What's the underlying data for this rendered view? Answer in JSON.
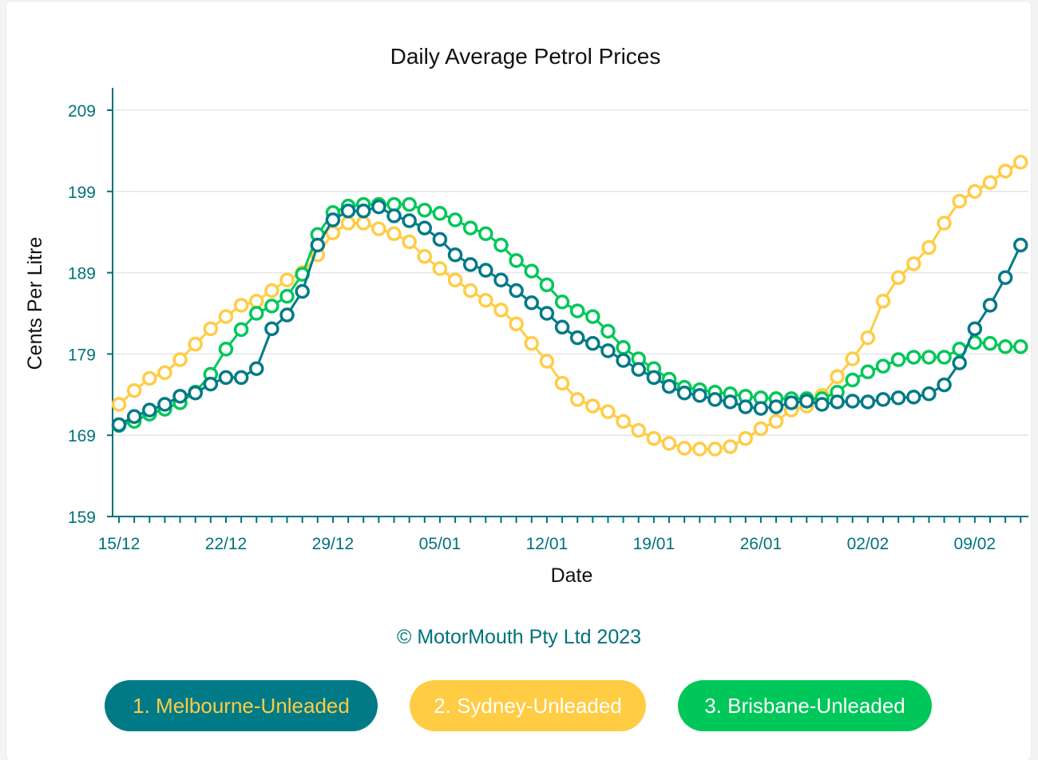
{
  "chart_data": {
    "type": "line",
    "title": "Daily Average Petrol Prices",
    "xlabel": "Date",
    "ylabel": "Cents Per Litre",
    "ylim": [
      159,
      211
    ],
    "yticks": [
      "159",
      "169",
      "179",
      "189",
      "199",
      "209"
    ],
    "xtick_labels": [
      "15/12",
      "22/12",
      "29/12",
      "05/01",
      "12/01",
      "19/01",
      "26/01",
      "02/02",
      "09/02"
    ],
    "grid": "horizontal",
    "x": [
      "15/12",
      "16/12",
      "17/12",
      "18/12",
      "19/12",
      "20/12",
      "21/12",
      "22/12",
      "23/12",
      "24/12",
      "25/12",
      "26/12",
      "27/12",
      "28/12",
      "29/12",
      "30/12",
      "31/12",
      "01/01",
      "02/01",
      "03/01",
      "04/01",
      "05/01",
      "06/01",
      "07/01",
      "08/01",
      "09/01",
      "10/01",
      "11/01",
      "12/01",
      "13/01",
      "14/01",
      "15/01",
      "16/01",
      "17/01",
      "18/01",
      "19/01",
      "20/01",
      "21/01",
      "22/01",
      "23/01",
      "24/01",
      "25/01",
      "26/01",
      "27/01",
      "28/01",
      "29/01",
      "30/01",
      "31/01",
      "01/02",
      "02/02",
      "03/02",
      "04/02",
      "05/02",
      "06/02",
      "07/02",
      "08/02",
      "09/02",
      "10/02",
      "11/02",
      "12/02"
    ],
    "series": [
      {
        "name": "1. Melbourne-Unleaded",
        "color": "#007a87",
        "text_color": "#ffcc44",
        "values": [
          170.3,
          171.3,
          172.1,
          172.8,
          173.8,
          174.2,
          175.3,
          176.1,
          176.1,
          177.2,
          182.1,
          183.8,
          186.7,
          192.4,
          195.5,
          196.6,
          196.6,
          197.1,
          196.0,
          195.4,
          194.5,
          193.1,
          191.2,
          190.0,
          189.3,
          188.1,
          186.8,
          185.3,
          184.0,
          182.3,
          181.0,
          180.3,
          179.4,
          178.2,
          177.1,
          176.1,
          175.0,
          174.2,
          173.9,
          173.4,
          173.1,
          172.5,
          172.3,
          172.5,
          173.0,
          173.2,
          172.8,
          173.1,
          173.2,
          173.1,
          173.4,
          173.6,
          173.7,
          174.1,
          175.2,
          177.9,
          182.1,
          185.0,
          188.4,
          192.4
        ]
      },
      {
        "name": "2. Sydney-Unleaded",
        "color": "#ffcc44",
        "text_color": "#ffffff",
        "values": [
          172.8,
          174.5,
          176.0,
          176.7,
          178.3,
          180.2,
          182.1,
          183.6,
          185.0,
          185.5,
          186.8,
          188.1,
          189.0,
          191.2,
          193.9,
          195.1,
          195.1,
          194.4,
          193.8,
          192.8,
          191.0,
          189.5,
          188.1,
          186.8,
          185.6,
          184.4,
          182.7,
          180.3,
          178.1,
          175.4,
          173.4,
          172.6,
          171.9,
          170.7,
          169.6,
          168.6,
          168.0,
          167.4,
          167.3,
          167.3,
          167.6,
          168.6,
          169.8,
          170.7,
          172.1,
          172.6,
          173.9,
          176.2,
          178.4,
          181.0,
          185.5,
          188.4,
          190.1,
          192.1,
          195.1,
          197.8,
          199.0,
          200.1,
          201.5,
          202.6
        ]
      },
      {
        "name": "3. Brisbane-Unleaded",
        "color": "#00c75a",
        "text_color": "#ffffff",
        "values": [
          170.2,
          170.7,
          171.6,
          172.2,
          173.0,
          174.3,
          176.5,
          179.6,
          182.0,
          184.0,
          184.9,
          186.1,
          188.8,
          193.7,
          196.4,
          197.2,
          197.4,
          197.4,
          197.4,
          197.4,
          196.7,
          196.3,
          195.5,
          194.5,
          193.8,
          192.4,
          190.5,
          189.2,
          187.5,
          185.4,
          184.3,
          183.6,
          181.8,
          179.8,
          178.4,
          177.2,
          175.9,
          174.9,
          174.6,
          174.3,
          174.1,
          173.8,
          173.6,
          173.5,
          173.5,
          173.5,
          173.5,
          174.3,
          175.8,
          176.8,
          177.5,
          178.3,
          178.6,
          178.6,
          178.6,
          179.6,
          180.4,
          180.3,
          179.9,
          179.9
        ]
      }
    ],
    "legend": "bottom",
    "axis_color": "#00727c"
  },
  "credit": "© MotorMouth Pty Ltd 2023"
}
